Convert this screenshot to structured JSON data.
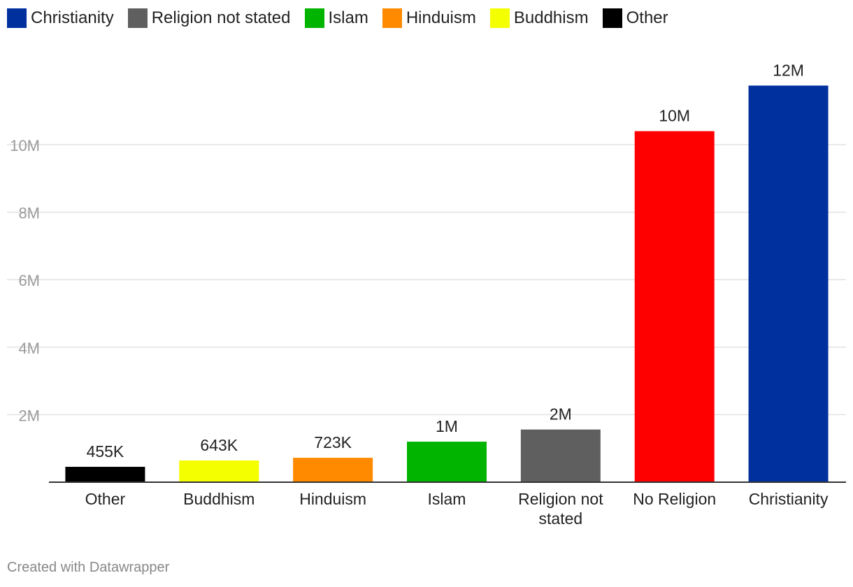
{
  "legend": [
    {
      "label": "Christianity",
      "color": "#002f9e"
    },
    {
      "label": "Religion not stated",
      "color": "#5f5f5f"
    },
    {
      "label": "Islam",
      "color": "#00b400"
    },
    {
      "label": "Hinduism",
      "color": "#ff8a00"
    },
    {
      "label": "Buddhism",
      "color": "#f4ff00"
    },
    {
      "label": "Other",
      "color": "#000000"
    }
  ],
  "footer": "Created with Datawrapper",
  "chart_data": {
    "type": "bar",
    "title": "",
    "xlabel": "",
    "ylabel": "",
    "ylim": [
      0,
      12500000
    ],
    "yticks": [
      {
        "value": 2000000,
        "label": "2M"
      },
      {
        "value": 4000000,
        "label": "4M"
      },
      {
        "value": 6000000,
        "label": "6M"
      },
      {
        "value": 8000000,
        "label": "8M"
      },
      {
        "value": 10000000,
        "label": "10M"
      }
    ],
    "grid": true,
    "bars": [
      {
        "category": [
          "Other"
        ],
        "value": 455000,
        "label": "455K",
        "color": "#000000"
      },
      {
        "category": [
          "Buddhism"
        ],
        "value": 643000,
        "label": "643K",
        "color": "#f4ff00"
      },
      {
        "category": [
          "Hinduism"
        ],
        "value": 723000,
        "label": "723K",
        "color": "#ff8a00"
      },
      {
        "category": [
          "Islam"
        ],
        "value": 1200000,
        "label": "1M",
        "color": "#00b400"
      },
      {
        "category": [
          "Religion not",
          "stated"
        ],
        "value": 1560000,
        "label": "2M",
        "color": "#5f5f5f"
      },
      {
        "category": [
          "No Religion"
        ],
        "value": 10400000,
        "label": "10M",
        "color": "#ff0000"
      },
      {
        "category": [
          "Christianity"
        ],
        "value": 11750000,
        "label": "12M",
        "color": "#002f9e"
      }
    ]
  }
}
